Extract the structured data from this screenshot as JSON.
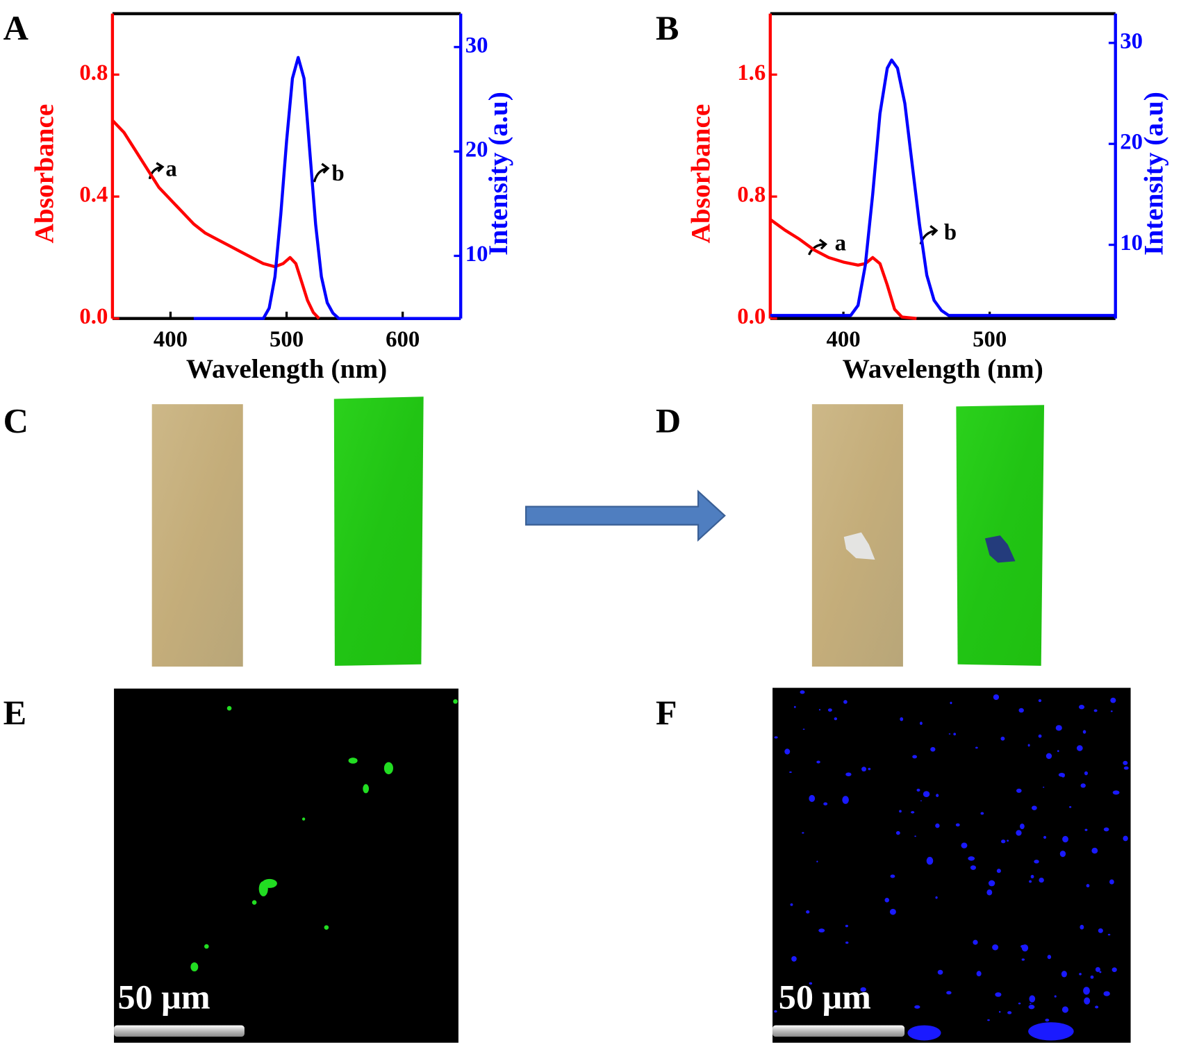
{
  "figure": {
    "panel_labels": [
      "A",
      "B",
      "C",
      "D",
      "E",
      "F"
    ],
    "scale_bars": [
      "50 μm",
      "50 μm"
    ]
  },
  "chart_data": [
    {
      "type": "line",
      "x_label": "Wavelength (nm)",
      "y_label": "Absorbance",
      "y2_label": "Intensity (a.u)",
      "xlim": [
        350,
        650
      ],
      "xticks": [
        400,
        500,
        600
      ],
      "ylim": [
        0,
        1.0
      ],
      "yticks": [
        {
          "value": 0,
          "label": "0.0"
        },
        0.4,
        0.8
      ],
      "y2lim": [
        4,
        33.2
      ],
      "y2ticks": [
        10,
        20,
        30
      ],
      "series": [
        {
          "name": "a",
          "color": "#ff0000",
          "axis": "y",
          "x": [
            350,
            360,
            370,
            380,
            390,
            400,
            410,
            420,
            430,
            440,
            450,
            460,
            470,
            480,
            490,
            497,
            503,
            508,
            513,
            518,
            523,
            528
          ],
          "values": [
            0.65,
            0.61,
            0.55,
            0.49,
            0.43,
            0.39,
            0.35,
            0.31,
            0.28,
            0.26,
            0.24,
            0.22,
            0.2,
            0.18,
            0.17,
            0.18,
            0.2,
            0.18,
            0.12,
            0.06,
            0.02,
            0
          ]
        },
        {
          "name": "b",
          "color": "#0000ff",
          "axis": "y2",
          "x": [
            420,
            480,
            485,
            490,
            495,
            500,
            505,
            510,
            515,
            520,
            525,
            530,
            535,
            540,
            545,
            550,
            650
          ],
          "values": [
            4,
            4,
            5,
            8,
            14,
            21,
            27,
            29,
            27,
            20,
            13,
            8,
            5.5,
            4.5,
            4,
            4,
            4
          ]
        }
      ]
    },
    {
      "type": "line",
      "x_label": "Wavelength (nm)",
      "y_label": "Absorbance",
      "y2_label": "Intensity (a.u)",
      "xlim": [
        350,
        586
      ],
      "xticks": [
        400,
        500
      ],
      "ylim": [
        0,
        2.0
      ],
      "yticks": [
        {
          "value": 0,
          "label": "0.0"
        },
        0.8,
        1.6
      ],
      "y2lim": [
        2.7,
        32.9
      ],
      "y2ticks": [
        10,
        20,
        30
      ],
      "series": [
        {
          "name": "a",
          "color": "#ff0000",
          "axis": "y",
          "x": [
            350,
            360,
            370,
            380,
            390,
            400,
            410,
            415,
            420,
            425,
            430,
            435,
            440,
            450
          ],
          "values": [
            0.65,
            0.58,
            0.52,
            0.45,
            0.4,
            0.37,
            0.35,
            0.36,
            0.4,
            0.36,
            0.22,
            0.06,
            0.01,
            0
          ]
        },
        {
          "name": "b",
          "color": "#0000ff",
          "axis": "y2",
          "x": [
            350,
            405,
            410,
            415,
            420,
            425,
            430,
            433,
            437,
            442,
            447,
            452,
            457,
            462,
            467,
            472,
            586
          ],
          "values": [
            3,
            3,
            4,
            8,
            15,
            23,
            27.5,
            28.3,
            27.5,
            24,
            18,
            12,
            7,
            4.5,
            3.5,
            3,
            3
          ]
        }
      ]
    }
  ]
}
